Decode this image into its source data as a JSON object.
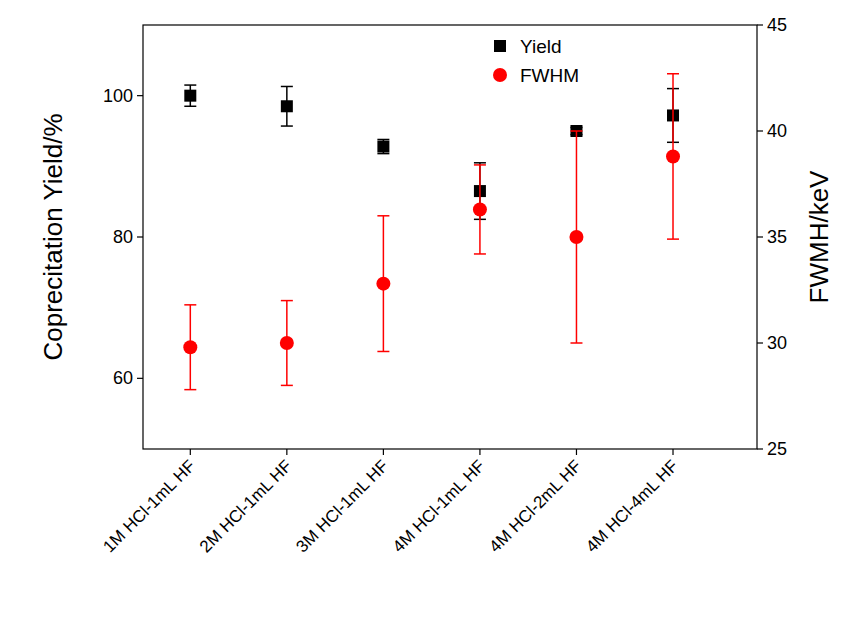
{
  "chart_data": {
    "type": "scatter",
    "categories": [
      "1M HCl-1mL HF",
      "2M HCl-1mL HF",
      "3M HCl-1mL HF",
      "4M HCl-1mL HF",
      "4M HCl-2mL HF",
      "4M HCl-4mL HF"
    ],
    "y_label": "Coprecitation Yield/%",
    "y2_label": "FWMH/keV",
    "ylim": [
      50,
      110
    ],
    "yticks": [
      60,
      80,
      100
    ],
    "y2lim": [
      25,
      45
    ],
    "y2ticks": [
      25,
      30,
      35,
      40,
      45
    ],
    "legend": "top",
    "series": [
      {
        "name": "Yield",
        "color": "#000000",
        "marker": "square",
        "values": [
          100,
          98.5,
          92.8,
          86.5,
          95,
          97.2
        ],
        "errors": [
          1.5,
          2.8,
          1,
          4,
          0.5,
          3.8
        ]
      },
      {
        "name": "FWHM",
        "color": "#ff0000",
        "marker": "circle",
        "axis": "y2",
        "values": [
          29.8,
          30,
          32.8,
          36.3,
          35,
          38.8
        ],
        "errors": [
          2,
          2,
          3.2,
          2.1,
          5,
          3.9
        ]
      }
    ]
  }
}
